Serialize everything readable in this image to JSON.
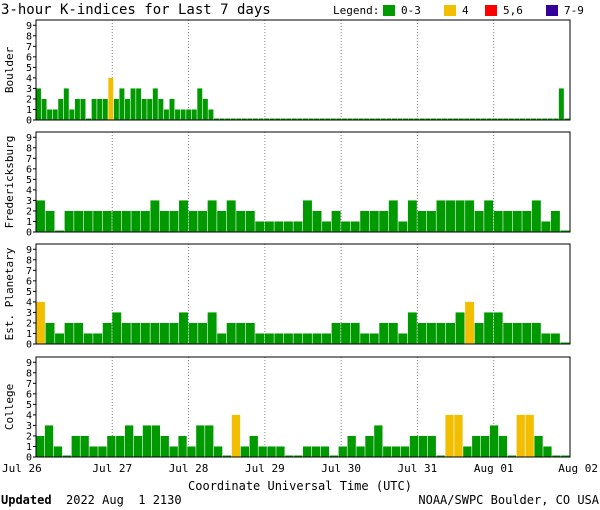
{
  "chart_data": {
    "type": "bar",
    "title": "3-hour K-indices for Last 7 days",
    "legend": {
      "label": "Legend:",
      "placement": "top-right",
      "entries": [
        {
          "label": "0-3",
          "color": "#009900"
        },
        {
          "label": "4",
          "color": "#f2be00"
        },
        {
          "label": "5,6",
          "color": "#ff0000"
        },
        {
          "label": "7-9",
          "color": "#330099"
        }
      ]
    },
    "xlabel": "Coordinate Universal Time (UTC)",
    "x_ticks": [
      "Jul 26",
      "Jul 27",
      "Jul 28",
      "Jul 29",
      "Jul 30",
      "Jul 31",
      "Aug 01",
      "Aug 02"
    ],
    "y_ticks": [
      "0",
      "1",
      "2",
      "3",
      "4",
      "5",
      "6",
      "7",
      "8",
      "9"
    ],
    "ylim": [
      0,
      9
    ],
    "grid": true,
    "bins_per_day": 8,
    "panels": [
      {
        "name": "Boulder",
        "values": [
          3,
          2,
          1,
          1,
          2,
          3,
          1,
          2,
          2,
          0,
          2,
          2,
          2,
          4,
          2,
          3,
          2,
          3,
          3,
          2,
          2,
          3,
          2,
          1,
          2,
          1,
          1,
          1,
          1,
          3,
          2,
          1,
          0,
          0,
          0,
          0,
          0,
          0,
          0,
          0,
          0,
          0,
          0,
          0,
          0,
          0,
          0,
          0,
          0,
          0,
          0,
          0,
          0,
          0,
          0,
          0,
          0,
          0,
          0,
          0,
          0,
          0,
          0,
          0,
          0,
          0,
          0,
          0,
          0,
          0,
          0,
          0,
          0,
          0,
          0,
          0,
          0,
          0,
          0,
          0,
          0,
          0,
          0,
          0,
          0,
          0,
          0,
          0,
          0,
          0,
          0,
          0,
          0,
          0,
          3,
          0
        ]
      },
      {
        "name": "Fredericksburg",
        "values": [
          3,
          2,
          0,
          2,
          2,
          2,
          2,
          2,
          2,
          2,
          2,
          2,
          3,
          2,
          2,
          3,
          2,
          2,
          3,
          2,
          3,
          2,
          2,
          1,
          1,
          1,
          1,
          1,
          3,
          2,
          1,
          2,
          1,
          1,
          2,
          2,
          2,
          3,
          1,
          3,
          2,
          2,
          3,
          3,
          3,
          3,
          2,
          3,
          2,
          2,
          2,
          2,
          3,
          1,
          2,
          0
        ]
      },
      {
        "name": "Est. Planetary",
        "values": [
          4,
          2,
          1,
          2,
          2,
          1,
          1,
          2,
          3,
          2,
          2,
          2,
          2,
          2,
          2,
          3,
          2,
          2,
          3,
          1,
          2,
          2,
          2,
          1,
          1,
          1,
          1,
          1,
          1,
          1,
          1,
          2,
          2,
          2,
          1,
          1,
          2,
          2,
          1,
          3,
          2,
          2,
          2,
          2,
          3,
          4,
          2,
          3,
          3,
          2,
          2,
          2,
          2,
          1,
          1,
          0
        ]
      },
      {
        "name": "College",
        "values": [
          2,
          3,
          1,
          0,
          2,
          2,
          1,
          1,
          2,
          2,
          3,
          2,
          3,
          3,
          2,
          1,
          2,
          1,
          3,
          3,
          1,
          0,
          4,
          1,
          2,
          1,
          1,
          1,
          0,
          0,
          1,
          1,
          1,
          0,
          1,
          2,
          1,
          2,
          3,
          1,
          1,
          1,
          2,
          2,
          2,
          0,
          4,
          4,
          1,
          2,
          2,
          3,
          2,
          0,
          4,
          4,
          2,
          1,
          0,
          0
        ]
      }
    ]
  },
  "footer": {
    "updated_label": "Updated",
    "updated_value": "2022 Aug  1 2130",
    "credit": "NOAA/SWPC Boulder, CO USA"
  }
}
